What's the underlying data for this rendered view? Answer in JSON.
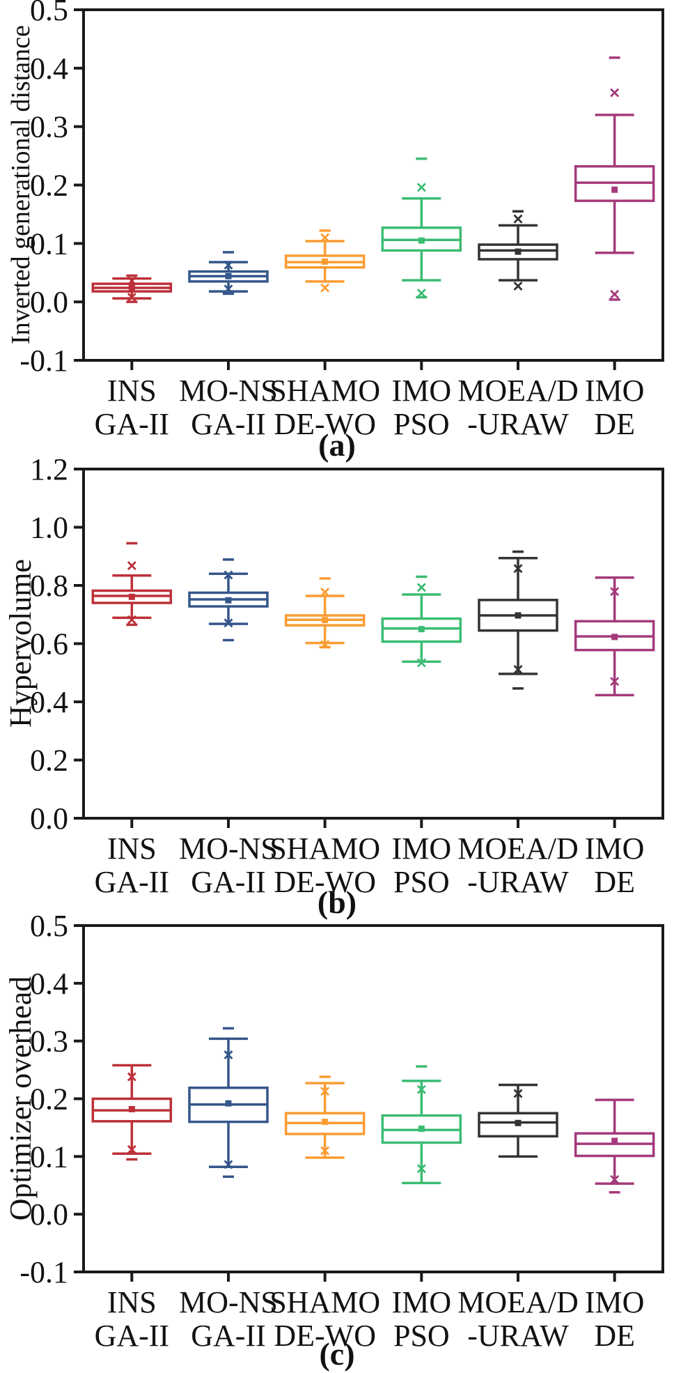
{
  "figure": {
    "background": "#ffffff",
    "axis_color": "#1a1a1a"
  },
  "chart_data": [
    {
      "type": "box",
      "caption": "(a)",
      "ylabel": "Inverted generational distance",
      "ylim": [
        -0.1,
        0.5
      ],
      "yticks": [
        0.5,
        0.4,
        0.3,
        0.2,
        0.1,
        0.0,
        -0.1
      ],
      "grid": false,
      "legend": "none",
      "categories": [
        {
          "line1": "INS",
          "line2": "GA-II"
        },
        {
          "line1": "MO-NS",
          "line2": "GA-II"
        },
        {
          "line1": "SHAMO",
          "line2": "DE-WO"
        },
        {
          "line1": "IMO",
          "line2": "PSO"
        },
        {
          "line1": "MOEA/D",
          "line2": "-URAW"
        },
        {
          "line1": "IMO",
          "line2": "DE"
        }
      ],
      "series": [
        {
          "name": "INS GA-II",
          "color": "#BD3039",
          "whislo": 0.006,
          "q1": 0.018,
          "med": 0.024,
          "q3": 0.031,
          "whishi": 0.04,
          "mean": 0.024,
          "xmarks": [
            0.036,
            0.008
          ],
          "dashes": [
            0.045,
            0.0
          ]
        },
        {
          "name": "MO-NS GA-II",
          "color": "#34568A",
          "whislo": 0.018,
          "q1": 0.035,
          "med": 0.044,
          "q3": 0.052,
          "whishi": 0.068,
          "mean": 0.044,
          "xmarks": [
            0.063,
            0.022
          ],
          "dashes": [
            0.085,
            0.014
          ]
        },
        {
          "name": "SHAMO DE-WO",
          "color": "#FA9C32",
          "whislo": 0.035,
          "q1": 0.059,
          "med": 0.068,
          "q3": 0.079,
          "whishi": 0.104,
          "mean": 0.069,
          "xmarks": [
            0.11,
            0.024
          ],
          "dashes": [
            0.122
          ]
        },
        {
          "name": "IMO PSO",
          "color": "#3BBC72",
          "whislo": 0.037,
          "q1": 0.088,
          "med": 0.106,
          "q3": 0.127,
          "whishi": 0.177,
          "mean": 0.105,
          "xmarks": [
            0.196,
            0.015
          ],
          "dashes": [
            0.245,
            0.008
          ]
        },
        {
          "name": "MOEA/D-URAW",
          "color": "#333333",
          "whislo": 0.037,
          "q1": 0.073,
          "med": 0.088,
          "q3": 0.098,
          "whishi": 0.131,
          "mean": 0.086,
          "xmarks": [
            0.142,
            0.027
          ],
          "dashes": [
            0.155
          ]
        },
        {
          "name": "IMO DE",
          "color": "#A43A7B",
          "whislo": 0.084,
          "q1": 0.173,
          "med": 0.204,
          "q3": 0.232,
          "whishi": 0.32,
          "mean": 0.192,
          "xmarks": [
            0.358,
            0.013
          ],
          "dashes": [
            0.418,
            0.004
          ]
        }
      ]
    },
    {
      "type": "box",
      "caption": "(b)",
      "ylabel": "Hypervolume",
      "ylim": [
        0.0,
        1.2
      ],
      "yticks": [
        1.2,
        1.0,
        0.8,
        0.6,
        0.4,
        0.2,
        0.0
      ],
      "grid": false,
      "legend": "none",
      "categories": [
        {
          "line1": "INS",
          "line2": "GA-II"
        },
        {
          "line1": "MO-NS",
          "line2": "GA-II"
        },
        {
          "line1": "SHAMO",
          "line2": "DE-WO"
        },
        {
          "line1": "IMO",
          "line2": "PSO"
        },
        {
          "line1": "MOEA/D",
          "line2": "-URAW"
        },
        {
          "line1": "IMO",
          "line2": "DE"
        }
      ],
      "series": [
        {
          "name": "INS GA-II",
          "color": "#BD3039",
          "whislo": 0.689,
          "q1": 0.74,
          "med": 0.764,
          "q3": 0.782,
          "whishi": 0.834,
          "mean": 0.761,
          "xmarks": [
            0.868,
            0.682
          ],
          "dashes": [
            0.945,
            0.665
          ]
        },
        {
          "name": "MO-NS GA-II",
          "color": "#34568A",
          "whislo": 0.668,
          "q1": 0.728,
          "med": 0.752,
          "q3": 0.775,
          "whishi": 0.84,
          "mean": 0.749,
          "xmarks": [
            0.836,
            0.671
          ],
          "dashes": [
            0.889,
            0.612
          ]
        },
        {
          "name": "SHAMO DE-WO",
          "color": "#FA9C32",
          "whislo": 0.602,
          "q1": 0.663,
          "med": 0.682,
          "q3": 0.697,
          "whishi": 0.764,
          "mean": 0.681,
          "xmarks": [
            0.777,
            0.597
          ],
          "dashes": [
            0.824,
            0.588
          ]
        },
        {
          "name": "IMO PSO",
          "color": "#3BBC72",
          "whislo": 0.538,
          "q1": 0.607,
          "med": 0.652,
          "q3": 0.686,
          "whishi": 0.769,
          "mean": 0.65,
          "xmarks": [
            0.793,
            0.534
          ],
          "dashes": [
            0.83
          ]
        },
        {
          "name": "MOEA/D-URAW",
          "color": "#333333",
          "whislo": 0.496,
          "q1": 0.645,
          "med": 0.697,
          "q3": 0.75,
          "whishi": 0.894,
          "mean": 0.697,
          "xmarks": [
            0.858,
            0.511
          ],
          "dashes": [
            0.916,
            0.446
          ]
        },
        {
          "name": "IMO DE",
          "color": "#A43A7B",
          "whislo": 0.423,
          "q1": 0.578,
          "med": 0.625,
          "q3": 0.677,
          "whishi": 0.827,
          "mean": 0.623,
          "xmarks": [
            0.779,
            0.47
          ],
          "dashes": []
        }
      ]
    },
    {
      "type": "box",
      "caption": "(c)",
      "ylabel": "Optimizer overhead",
      "ylim": [
        -0.1,
        0.5
      ],
      "yticks": [
        0.5,
        0.4,
        0.3,
        0.2,
        0.1,
        0.0,
        -0.1
      ],
      "grid": false,
      "legend": "none",
      "categories": [
        {
          "line1": "INS",
          "line2": "GA-II"
        },
        {
          "line1": "MO-NS",
          "line2": "GA-II"
        },
        {
          "line1": "SHAMO",
          "line2": "DE-WO"
        },
        {
          "line1": "IMO",
          "line2": "PSO"
        },
        {
          "line1": "MOEA/D",
          "line2": "-URAW"
        },
        {
          "line1": "IMO",
          "line2": "DE"
        }
      ],
      "series": [
        {
          "name": "INS GA-II",
          "color": "#BD3039",
          "whislo": 0.105,
          "q1": 0.161,
          "med": 0.18,
          "q3": 0.2,
          "whishi": 0.258,
          "mean": 0.182,
          "xmarks": [
            0.238,
            0.112
          ],
          "dashes": [
            0.095
          ]
        },
        {
          "name": "MO-NS GA-II",
          "color": "#34568A",
          "whislo": 0.082,
          "q1": 0.16,
          "med": 0.19,
          "q3": 0.219,
          "whishi": 0.304,
          "mean": 0.192,
          "xmarks": [
            0.276,
            0.086
          ],
          "dashes": [
            0.322,
            0.065
          ]
        },
        {
          "name": "SHAMO DE-WO",
          "color": "#FA9C32",
          "whislo": 0.098,
          "q1": 0.139,
          "med": 0.158,
          "q3": 0.175,
          "whishi": 0.227,
          "mean": 0.16,
          "xmarks": [
            0.213,
            0.11
          ],
          "dashes": [
            0.238
          ]
        },
        {
          "name": "IMO PSO",
          "color": "#3BBC72",
          "whislo": 0.054,
          "q1": 0.124,
          "med": 0.146,
          "q3": 0.171,
          "whishi": 0.231,
          "mean": 0.148,
          "xmarks": [
            0.216,
            0.079
          ],
          "dashes": [
            0.256
          ]
        },
        {
          "name": "MOEA/D-URAW",
          "color": "#333333",
          "whislo": 0.1,
          "q1": 0.135,
          "med": 0.159,
          "q3": 0.175,
          "whishi": 0.224,
          "mean": 0.158,
          "xmarks": [
            0.209
          ],
          "dashes": []
        },
        {
          "name": "IMO DE",
          "color": "#A43A7B",
          "whislo": 0.053,
          "q1": 0.101,
          "med": 0.122,
          "q3": 0.14,
          "whishi": 0.198,
          "mean": 0.127,
          "xmarks": [
            0.06
          ],
          "dashes": [
            0.038
          ]
        }
      ]
    }
  ]
}
